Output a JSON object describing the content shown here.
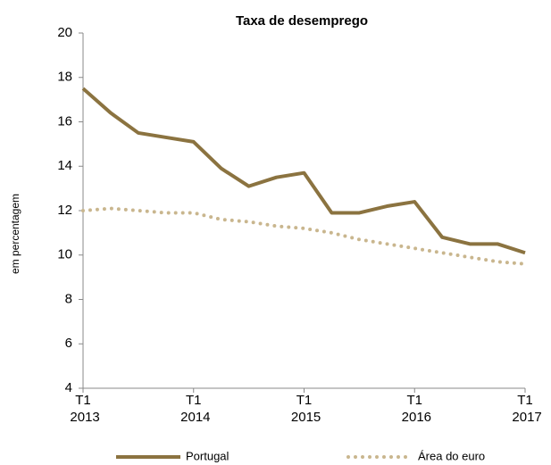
{
  "chart_data": {
    "type": "line",
    "title": "Taxa de desemprego",
    "y_label": "em percentagem",
    "categories": [
      "T1 2013",
      null,
      null,
      null,
      "T1 2014",
      null,
      null,
      null,
      "T1 2015",
      null,
      null,
      null,
      "T1 2016",
      null,
      null,
      null,
      "T1 2017"
    ],
    "series": [
      {
        "name": "Portugal",
        "color": "#8b7340",
        "style": "solid",
        "values": [
          17.5,
          16.4,
          15.5,
          15.3,
          15.1,
          13.9,
          13.1,
          13.5,
          13.7,
          11.9,
          11.9,
          12.2,
          12.4,
          10.8,
          10.5,
          10.5,
          10.1
        ]
      },
      {
        "name": "Área do euro",
        "color": "#c9b68e",
        "style": "dotted",
        "values": [
          12.0,
          12.1,
          12.0,
          11.9,
          11.9,
          11.6,
          11.5,
          11.3,
          11.2,
          11.0,
          10.7,
          10.5,
          10.3,
          10.1,
          9.9,
          9.7,
          9.6
        ]
      }
    ],
    "ylim": [
      4,
      20
    ],
    "yticks": [
      4,
      6,
      8,
      10,
      12,
      14,
      16,
      18,
      20
    ],
    "legend": "bottom"
  }
}
